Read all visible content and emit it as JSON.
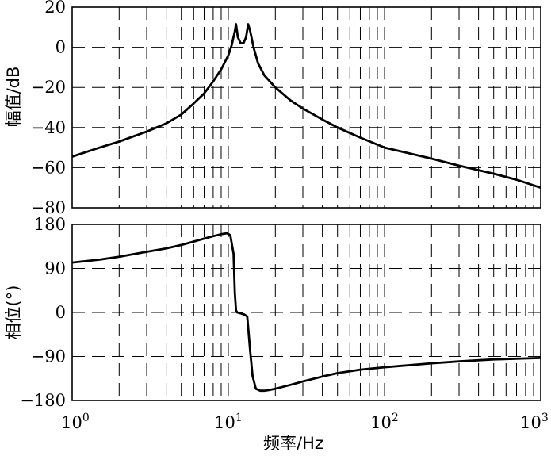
{
  "chart_data": {
    "type": "line",
    "x_scale": "log",
    "grid": true,
    "x_ticks": [
      {
        "base": "10",
        "exp": "0"
      },
      {
        "base": "10",
        "exp": "1"
      },
      {
        "base": "10",
        "exp": "2"
      },
      {
        "base": "10",
        "exp": "3"
      }
    ],
    "xlabel": "频率/Hz",
    "xlim": [
      1,
      1000
    ],
    "panels": [
      {
        "name": "magnitude",
        "ylabel": "幅值/dB",
        "ylim": [
          -80,
          20
        ],
        "y_ticks": [
          "20",
          "0",
          "−20",
          "−40",
          "−60",
          "−80"
        ],
        "y_tick_values": [
          20,
          0,
          -20,
          -40,
          -60,
          -80
        ],
        "series": [
          {
            "x": [
              1,
              1.5,
              2,
              3,
              4,
              5,
              6,
              7,
              8,
              9,
              10,
              10.5,
              11,
              11.2,
              11.5,
              12,
              12.5,
              13,
              13.4,
              13.8,
              14.5,
              15.5,
              17,
              20,
              25,
              30,
              40,
              50,
              70,
              100,
              200,
              300,
              500,
              700,
              1000
            ],
            "y": [
              -54.5,
              -50,
              -47,
              -42,
              -38,
              -33.5,
              -28,
              -23,
              -17,
              -11,
              -4,
              1,
              8,
              11.5,
              5,
              2,
              2,
              5,
              11.5,
              8,
              0,
              -8,
              -14,
              -20,
              -26.5,
              -30.5,
              -36,
              -40,
              -45,
              -50,
              -55.5,
              -59,
              -63,
              -66,
              -70
            ]
          }
        ]
      },
      {
        "name": "phase",
        "ylabel": "相位(°)",
        "ylim": [
          -180,
          180
        ],
        "y_ticks": [
          "180",
          "90",
          "0",
          "−90",
          "−180"
        ],
        "y_tick_values": [
          180,
          90,
          0,
          -90,
          -180
        ],
        "series": [
          {
            "x": [
              1,
              1.5,
              2,
              3,
              4,
              5,
              6,
              7,
              8,
              9,
              9.8,
              10.3,
              10.8,
              11,
              11.2,
              11.4,
              12,
              12.6,
              13.2,
              13.4,
              13.8,
              14.3,
              15,
              16,
              17,
              18,
              20,
              25,
              30,
              40,
              50,
              70,
              100,
              200,
              300,
              500,
              1000
            ],
            "y": [
              102,
              108,
              114,
              124,
              131,
              138,
              145,
              151,
              156,
              160,
              162,
              158,
              120,
              40,
              4,
              0,
              -2,
              -4,
              -8,
              -30,
              -80,
              -130,
              -156,
              -160,
              -160,
              -159,
              -156,
              -148,
              -141,
              -131,
              -124,
              -117,
              -112,
              -104,
              -100,
              -96,
              -93
            ]
          }
        ]
      }
    ]
  }
}
